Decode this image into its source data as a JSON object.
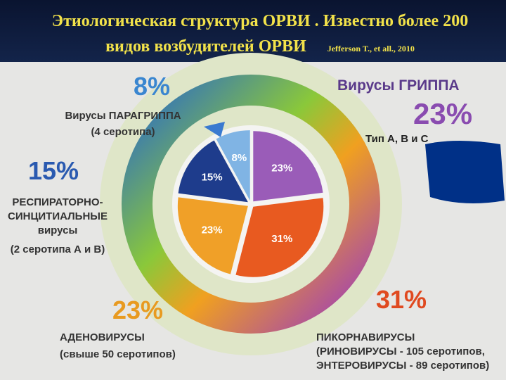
{
  "chart_data": {
    "type": "pie",
    "title": "Этиологическая структура ОРВИ . Известно более 200 видов возбудителей ОРВИ",
    "source": "Jefferson T., et all., 2010",
    "categories": [
      "Вирусы ГРИППА",
      "ПИКОРНАВИРУСЫ",
      "АДЕНОВИРУСЫ",
      "РЕСПИРАТОРНО-СИНЦИТИАЛЬНЫЕ вирусы",
      "Вирусы ПАРАГРИППА"
    ],
    "details": [
      "Тип А, В и С",
      "(РИНОВИРУСЫ - 105 серотипов, ЭНТЕРОВИРУСЫ - 89 серотипов)",
      "(свыше 50 серотипов)",
      "(2 серотипа А и В)",
      "(4 серотипа)"
    ],
    "values": [
      23,
      31,
      23,
      15,
      8
    ],
    "value_labels": [
      "23%",
      "31%",
      "23%",
      "15%",
      "8%"
    ],
    "colors": [
      "#9a5cb8",
      "#e85a20",
      "#f0a028",
      "#1e3c8c",
      "#80b4e4"
    ]
  }
}
